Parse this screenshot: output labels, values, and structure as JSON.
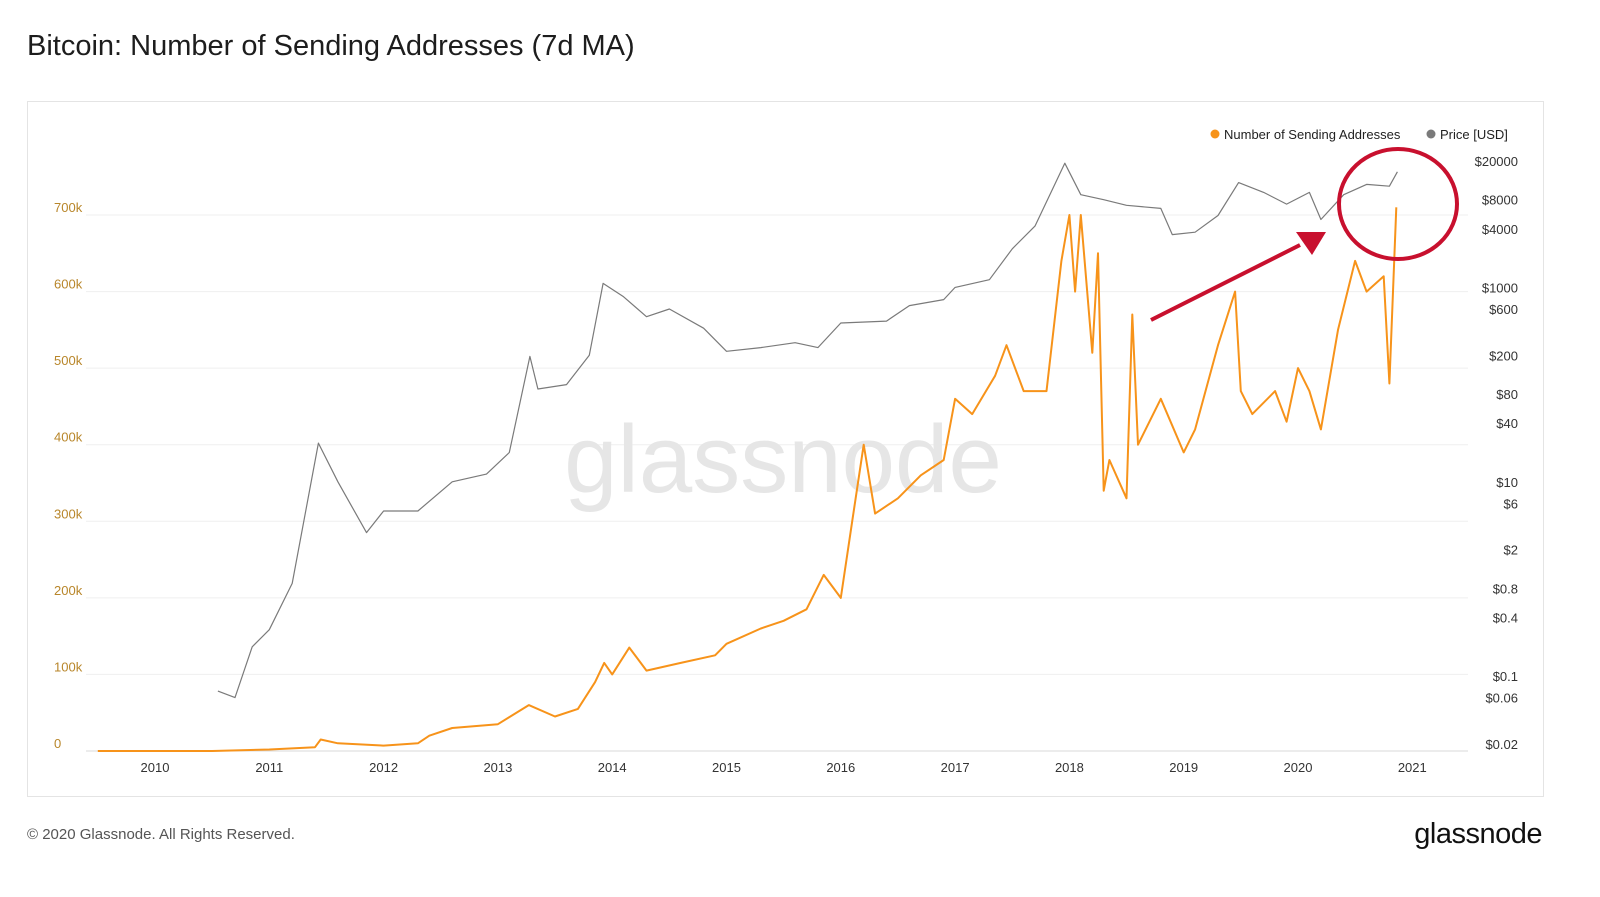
{
  "title": "Bitcoin: Number of Sending Addresses (7d MA)",
  "footer": "© 2020 Glassnode. All Rights Reserved.",
  "brand": "glassnode",
  "watermark": "glassnode",
  "chart_data": {
    "type": "line",
    "title": "Bitcoin: Number of Sending Addresses (7d MA)",
    "legend_position": "top-right",
    "grid": true,
    "x_ticks": [
      "2010",
      "2011",
      "2012",
      "2013",
      "2014",
      "2015",
      "2016",
      "2017",
      "2018",
      "2019",
      "2020",
      "2021"
    ],
    "xlim": [
      2009.4,
      2021.5
    ],
    "left_axis": {
      "ticks": [
        "0",
        "100k",
        "200k",
        "300k",
        "400k",
        "500k",
        "600k",
        "700k"
      ],
      "ylim": [
        0,
        700000
      ],
      "color": "#b8862a"
    },
    "right_axis": {
      "scale": "log",
      "ticks": [
        "$20000",
        "$8000",
        "$4000",
        "$1000",
        "$600",
        "$200",
        "$80",
        "$40",
        "$10",
        "$6",
        "$2",
        "$0.8",
        "$0.4",
        "$0.1",
        "$0.06",
        "$0.02"
      ],
      "ylim": [
        0.02,
        20000
      ]
    },
    "series": [
      {
        "name": "Number of Sending Addresses",
        "axis": "left",
        "color": "#f7931a",
        "x": [
          2009.5,
          2010.5,
          2011.0,
          2011.4,
          2011.45,
          2011.6,
          2012.0,
          2012.3,
          2012.4,
          2012.6,
          2013.0,
          2013.27,
          2013.5,
          2013.7,
          2013.85,
          2013.93,
          2014.0,
          2014.15,
          2014.3,
          2014.6,
          2014.9,
          2015.0,
          2015.3,
          2015.5,
          2015.7,
          2015.85,
          2016.0,
          2016.1,
          2016.2,
          2016.3,
          2016.5,
          2016.7,
          2016.9,
          2017.0,
          2017.15,
          2017.35,
          2017.45,
          2017.6,
          2017.8,
          2017.93,
          2018.0,
          2018.05,
          2018.1,
          2018.2,
          2018.25,
          2018.3,
          2018.35,
          2018.5,
          2018.55,
          2018.6,
          2018.8,
          2019.0,
          2019.1,
          2019.3,
          2019.45,
          2019.5,
          2019.6,
          2019.8,
          2019.9,
          2020.0,
          2020.1,
          2020.2,
          2020.35,
          2020.5,
          2020.6,
          2020.75,
          2020.8,
          2020.86
        ],
        "values": [
          0,
          0,
          2000,
          5000,
          15000,
          10000,
          7000,
          10000,
          20000,
          30000,
          35000,
          60000,
          45000,
          55000,
          90000,
          115000,
          100000,
          135000,
          105000,
          115000,
          125000,
          140000,
          160000,
          170000,
          185000,
          230000,
          200000,
          300000,
          400000,
          310000,
          330000,
          360000,
          380000,
          460000,
          440000,
          490000,
          530000,
          470000,
          470000,
          640000,
          700000,
          600000,
          700000,
          520000,
          650000,
          340000,
          380000,
          330000,
          570000,
          400000,
          460000,
          390000,
          420000,
          530000,
          600000,
          470000,
          440000,
          470000,
          430000,
          500000,
          470000,
          420000,
          550000,
          640000,
          600000,
          620000,
          480000,
          710000
        ]
      },
      {
        "name": "Price [USD]",
        "axis": "right",
        "color": "#7a7a7a",
        "x": [
          2010.55,
          2010.7,
          2010.85,
          2011.0,
          2011.2,
          2011.43,
          2011.6,
          2011.85,
          2012.0,
          2012.3,
          2012.6,
          2012.9,
          2013.1,
          2013.28,
          2013.35,
          2013.6,
          2013.8,
          2013.92,
          2014.1,
          2014.3,
          2014.5,
          2014.8,
          2015.0,
          2015.3,
          2015.6,
          2015.8,
          2016.0,
          2016.4,
          2016.6,
          2016.9,
          2017.0,
          2017.3,
          2017.5,
          2017.7,
          2017.96,
          2018.1,
          2018.3,
          2018.5,
          2018.8,
          2018.9,
          2019.1,
          2019.3,
          2019.48,
          2019.7,
          2019.9,
          2020.1,
          2020.2,
          2020.4,
          2020.6,
          2020.8,
          2020.87
        ],
        "values": [
          0.07,
          0.06,
          0.2,
          0.3,
          0.9,
          25,
          10,
          3,
          5,
          5,
          10,
          12,
          20,
          195,
          90,
          100,
          200,
          1100,
          800,
          500,
          600,
          380,
          220,
          240,
          270,
          240,
          430,
          450,
          650,
          750,
          1000,
          1200,
          2500,
          4300,
          19000,
          9000,
          8000,
          7000,
          6500,
          3500,
          3700,
          5500,
          12000,
          9500,
          7200,
          9500,
          5000,
          9000,
          11500,
          11000,
          15500
        ]
      }
    ]
  }
}
